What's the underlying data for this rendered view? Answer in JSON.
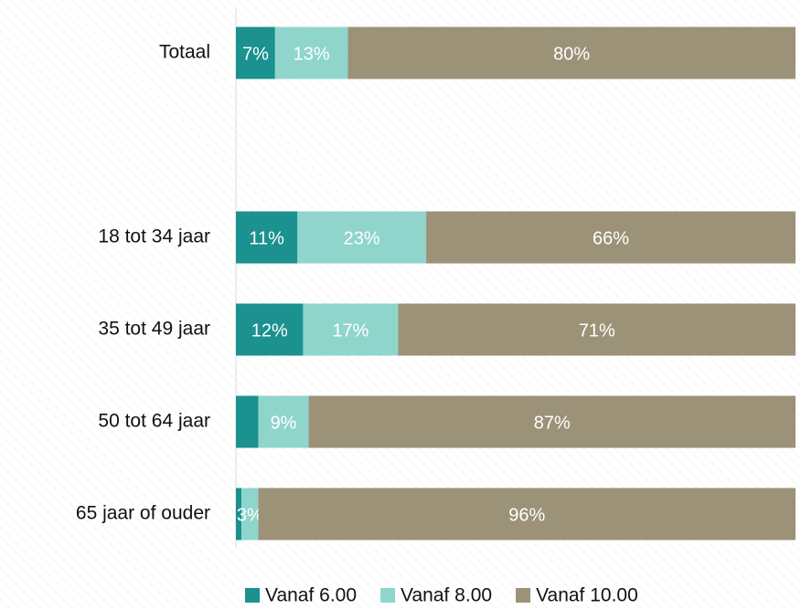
{
  "chart_data": {
    "type": "stacked-bar-horizontal",
    "categories": [
      "Totaal",
      null,
      "18 tot 34 jaar",
      "35 tot 49 jaar",
      "50 tot 64 jaar",
      "65 jaar of ouder"
    ],
    "xlim": [
      0,
      100
    ],
    "series": [
      {
        "name": "Vanaf 6.00",
        "color": "#1b9190",
        "values": [
          7,
          null,
          11,
          12,
          4,
          1
        ],
        "value_labels": [
          "7%",
          null,
          "11%",
          "12%",
          null,
          null
        ]
      },
      {
        "name": "Vanaf 8.00",
        "color": "#90d5cc",
        "values": [
          13,
          null,
          23,
          17,
          9,
          3
        ],
        "value_labels": [
          "13%",
          null,
          "23%",
          "17%",
          "9%",
          "3%"
        ]
      },
      {
        "name": "Vanaf 10.00",
        "color": "#9c9278",
        "values": [
          80,
          null,
          66,
          71,
          87,
          96
        ],
        "value_labels": [
          "80%",
          null,
          "66%",
          "71%",
          "87%",
          "96%"
        ]
      }
    ]
  }
}
